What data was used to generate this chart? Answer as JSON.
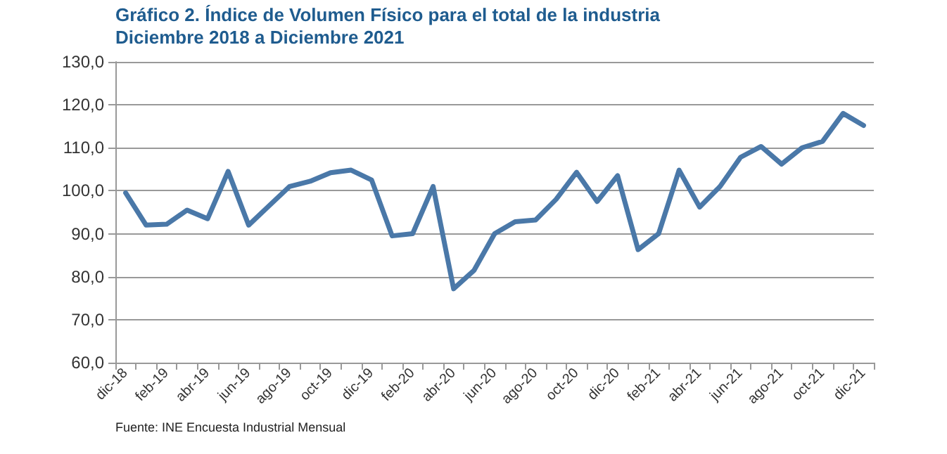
{
  "chart_data": {
    "type": "line",
    "title": "Gráfico 2. Índice de Volumen Físico para el total de la industria",
    "subtitle": "Diciembre 2018 a Diciembre 2021",
    "categories": [
      "dic-18",
      null,
      "feb-19",
      null,
      "abr-19",
      null,
      "jun-19",
      null,
      "ago-19",
      null,
      "oct-19",
      null,
      "dic-19",
      null,
      "feb-20",
      null,
      "abr-20",
      null,
      "jun-20",
      null,
      "ago-20",
      null,
      "oct-20",
      null,
      "dic-20",
      null,
      "feb-21",
      null,
      "abr-21",
      null,
      "jun-21",
      null,
      "ago-21",
      null,
      "oct-21",
      null,
      "dic-21"
    ],
    "series": [
      {
        "color": "#4a78a8",
        "values": [
          99.5,
          92,
          92.2,
          95.5,
          93.5,
          104.5,
          92,
          96.5,
          101,
          102.2,
          104.2,
          104.8,
          102.5,
          89.5,
          90,
          101,
          77.2,
          81.5,
          90,
          92.8,
          93.2,
          98,
          104.3,
          97.5,
          103.5,
          86.3,
          90,
          104.8,
          96.2,
          101,
          107.8,
          110.3,
          106.2,
          110,
          111.5,
          118,
          115.2
        ]
      }
    ],
    "ylim": [
      60,
      130
    ],
    "yticks": [
      {
        "value": 60,
        "label": "60,0"
      },
      {
        "value": 70,
        "label": "70,0"
      },
      {
        "value": 80,
        "label": "80,0"
      },
      {
        "value": 90,
        "label": "90,0"
      },
      {
        "value": 100,
        "label": "100,0"
      },
      {
        "value": 110,
        "label": "110,0"
      },
      {
        "value": 120,
        "label": "120,0"
      },
      {
        "value": 130,
        "label": "130,0"
      }
    ],
    "grid": "y",
    "marker": "none",
    "line_style": "solid",
    "annotations": [
      "Fuente: INE Encuesta Industrial Mensual"
    ]
  }
}
